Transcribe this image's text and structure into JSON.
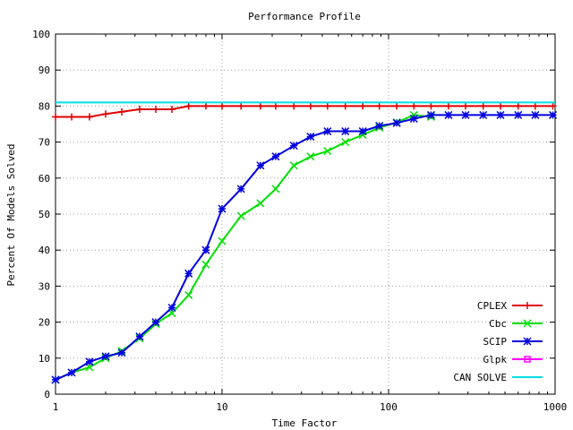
{
  "chart_data": {
    "type": "line",
    "title": "Performance Profile",
    "xlabel": "Time Factor",
    "ylabel": "Percent Of Models Solved",
    "x_scale": "log",
    "xlim": [
      1,
      1000
    ],
    "ylim": [
      0,
      100
    ],
    "x_ticks": [
      1,
      10,
      100,
      1000
    ],
    "x_tick_labels": [
      "1",
      "10",
      "100",
      "1000"
    ],
    "y_ticks": [
      0,
      10,
      20,
      30,
      40,
      50,
      60,
      70,
      80,
      90,
      100
    ],
    "y_tick_labels": [
      "0",
      "10",
      "20",
      "30",
      "40",
      "50",
      "60",
      "70",
      "80",
      "90",
      "100"
    ],
    "grid": true,
    "legend_position": "bottom-right",
    "series": [
      {
        "name": "CPLEX",
        "color": "#e00000",
        "marker": "plus",
        "points": [
          [
            1,
            77
          ],
          [
            1.25,
            77
          ],
          [
            1.6,
            77
          ],
          [
            2,
            77.8
          ],
          [
            2.5,
            78.4
          ],
          [
            3.2,
            79.1
          ],
          [
            4,
            79.1
          ],
          [
            5,
            79.1
          ],
          [
            6.3,
            80
          ],
          [
            8,
            80
          ],
          [
            10,
            80
          ],
          [
            13,
            80
          ],
          [
            17,
            80
          ],
          [
            21,
            80
          ],
          [
            27,
            80
          ],
          [
            34,
            80
          ],
          [
            43,
            80
          ],
          [
            55,
            80
          ],
          [
            70,
            80
          ],
          [
            88,
            80
          ],
          [
            112,
            80
          ],
          [
            142,
            80
          ],
          [
            180,
            80
          ],
          [
            229,
            80
          ],
          [
            290,
            80
          ],
          [
            370,
            80
          ],
          [
            470,
            80
          ],
          [
            600,
            80
          ],
          [
            760,
            80
          ],
          [
            970,
            80
          ]
        ]
      },
      {
        "name": "Cbc",
        "color": "#00e000",
        "marker": "x",
        "points": [
          [
            1,
            4
          ],
          [
            1.25,
            6
          ],
          [
            1.6,
            7.5
          ],
          [
            2,
            10
          ],
          [
            2.5,
            12
          ],
          [
            3.2,
            15.5
          ],
          [
            4,
            19.5
          ],
          [
            5,
            22.5
          ],
          [
            6.3,
            27.5
          ],
          [
            8,
            36
          ],
          [
            10,
            42.5
          ],
          [
            13,
            49.5
          ],
          [
            17,
            53
          ],
          [
            21,
            57
          ],
          [
            27,
            63.5
          ],
          [
            34,
            66
          ],
          [
            43,
            67.5
          ],
          [
            55,
            70
          ],
          [
            70,
            72
          ],
          [
            88,
            74
          ],
          [
            112,
            75.5
          ],
          [
            142,
            77.5
          ],
          [
            180,
            77
          ]
        ]
      },
      {
        "name": "SCIP",
        "color": "#0000e0",
        "marker": "star",
        "points": [
          [
            1,
            4
          ],
          [
            1.25,
            6
          ],
          [
            1.6,
            9
          ],
          [
            2,
            10.5
          ],
          [
            2.5,
            11.5
          ],
          [
            3.2,
            16
          ],
          [
            4,
            20
          ],
          [
            5,
            24
          ],
          [
            6.3,
            33.5
          ],
          [
            8,
            40
          ],
          [
            10,
            51.5
          ],
          [
            13,
            57
          ],
          [
            17,
            63.5
          ],
          [
            21,
            66
          ],
          [
            27,
            69
          ],
          [
            34,
            71.5
          ],
          [
            43,
            73
          ],
          [
            55,
            73
          ],
          [
            70,
            73
          ],
          [
            88,
            74.5
          ],
          [
            112,
            75.3
          ],
          [
            142,
            76.5
          ],
          [
            180,
            77.5
          ],
          [
            229,
            77.5
          ],
          [
            290,
            77.5
          ],
          [
            370,
            77.5
          ],
          [
            470,
            77.5
          ],
          [
            600,
            77.5
          ],
          [
            760,
            77.5
          ],
          [
            970,
            77.5
          ]
        ]
      },
      {
        "name": "Glpk",
        "color": "#ff00ff",
        "marker": "square",
        "points": []
      },
      {
        "name": "CAN SOLVE",
        "color": "#00e0e0",
        "marker": "none",
        "points": [
          [
            1,
            81
          ],
          [
            1000,
            81
          ]
        ]
      }
    ]
  }
}
